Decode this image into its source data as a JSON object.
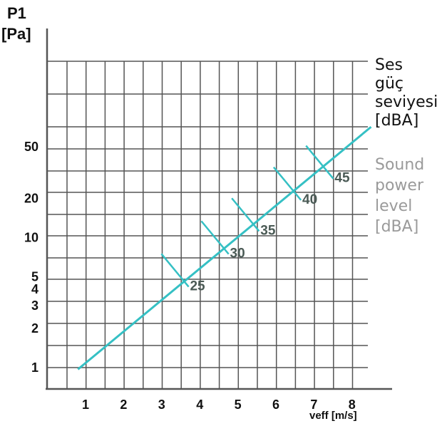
{
  "chart_data": {
    "type": "line",
    "y_title": [
      "P1",
      "[Pa]"
    ],
    "x_title": "veff [m/s]",
    "x_ticks": [
      "1",
      "2",
      "3",
      "4",
      "5",
      "6",
      "7",
      "8"
    ],
    "y_ticks": [
      "1",
      "2",
      "3",
      "4",
      "5",
      "10",
      "20",
      "50"
    ],
    "y_scale": "log",
    "grid": true,
    "series": [
      {
        "color": "#35c0c4",
        "x": [
          0.8,
          8.5
        ],
        "y": [
          0.97,
          71
        ]
      }
    ],
    "sound_level_marks": [
      {
        "label": "25",
        "x": 3.35,
        "y": 5.6
      },
      {
        "label": "30",
        "x": 4.4,
        "y": 10
      },
      {
        "label": "35",
        "x": 5.2,
        "y": 15
      },
      {
        "label": "40",
        "x": 6.3,
        "y": 26
      },
      {
        "label": "45",
        "x": 7.15,
        "y": 38
      }
    ],
    "legend_tr": [
      "Ses",
      "güç",
      "seviyesi",
      "[dBA]"
    ],
    "legend_en": [
      "Sound",
      "power",
      "level",
      "[dBA]"
    ]
  }
}
